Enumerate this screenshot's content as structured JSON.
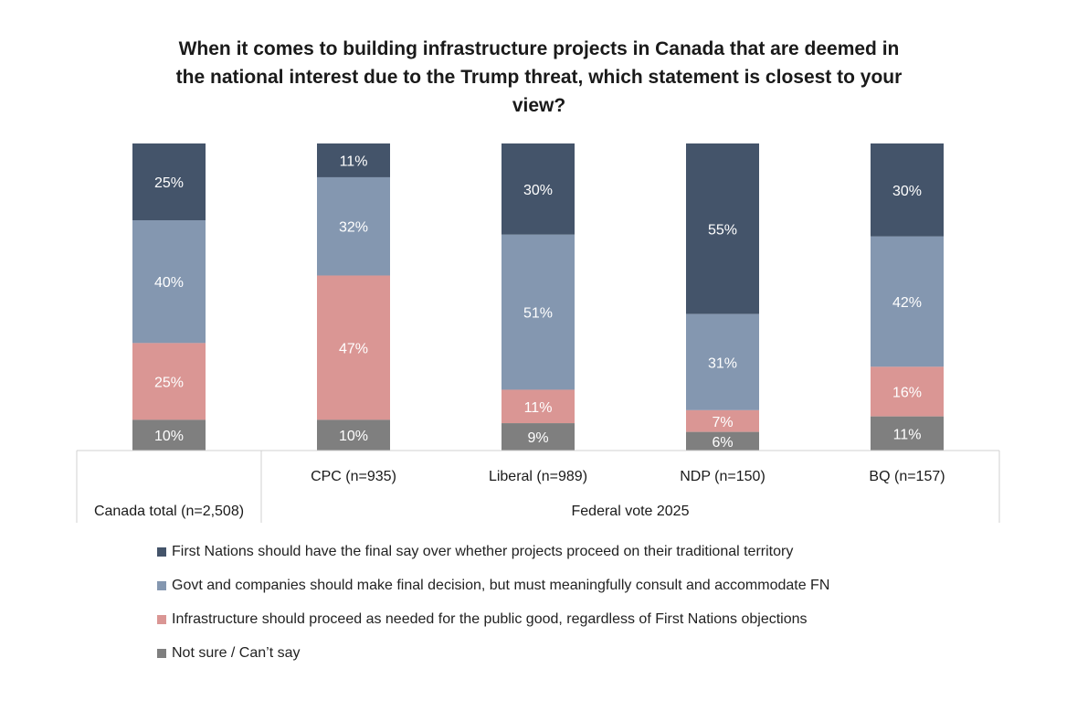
{
  "chart_data": {
    "type": "bar",
    "stacked": true,
    "stack_mode": "percent",
    "title": "When it comes to building infrastructure projects in Canada that are deemed in the national interest due to the Trump threat, which statement is closest to your view?",
    "title_lines": [
      "When it comes to building infrastructure projects in Canada that are deemed in",
      "the national interest due to the Trump threat, which statement is closest to your",
      "view?"
    ],
    "categories": [
      "Canada total (n=2,508)",
      "CPC (n=935)",
      "Liberal (n=989)",
      "NDP (n=150)",
      "BQ (n=157)"
    ],
    "group_label": "Federal vote 2025",
    "series": [
      {
        "name": "First Nations should have the final say over whether projects proceed on their traditional territory",
        "color": "#44546A",
        "values": [
          25,
          11,
          30,
          55,
          30
        ]
      },
      {
        "name": "Govt and companies should make final decision, but must meaningfully consult and accommodate FN",
        "color": "#8497B0",
        "values": [
          40,
          32,
          51,
          31,
          42
        ]
      },
      {
        "name": "Infrastructure should proceed as needed for the public good, regardless of First Nations objections",
        "color": "#DA9694",
        "values": [
          25,
          47,
          11,
          7,
          16
        ]
      },
      {
        "name": "Not sure / Can’t say",
        "color": "#7F7F7F",
        "values": [
          10,
          10,
          9,
          6,
          11
        ]
      }
    ],
    "value_suffix": "%",
    "legend_position": "bottom",
    "grid": false
  }
}
